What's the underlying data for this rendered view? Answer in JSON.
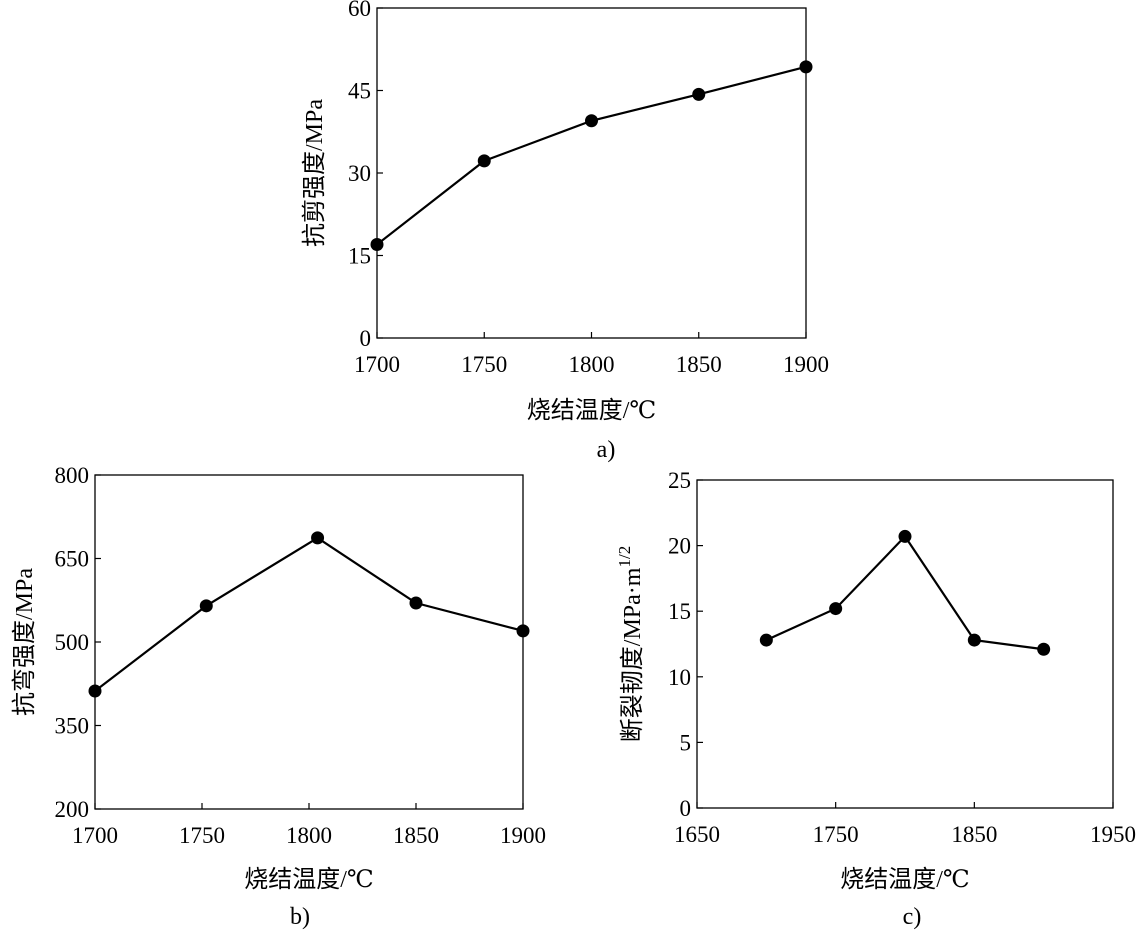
{
  "chart_data": [
    {
      "id": "a",
      "type": "line",
      "panel_label": "a)",
      "xlabel": "烧结温度/℃",
      "ylabel": "抗剪强度/MPa",
      "x": [
        1700,
        1750,
        1800,
        1850,
        1900
      ],
      "y": [
        17,
        32.2,
        39.5,
        44.3,
        49.3
      ],
      "xlim": [
        1700,
        1900
      ],
      "ylim": [
        0,
        60
      ],
      "xticks": [
        1700,
        1750,
        1800,
        1850,
        1900
      ],
      "yticks": [
        0,
        15,
        30,
        45,
        60
      ],
      "grid": false,
      "marker": "filled-circle"
    },
    {
      "id": "b",
      "type": "line",
      "panel_label": "b)",
      "xlabel": "烧结温度/℃",
      "ylabel": "抗弯强度/MPa",
      "x": [
        1700,
        1752,
        1804,
        1850,
        1900
      ],
      "y": [
        412,
        565,
        687,
        570,
        520
      ],
      "xlim": [
        1700,
        1900
      ],
      "ylim": [
        200,
        800
      ],
      "xticks": [
        1700,
        1750,
        1800,
        1850,
        1900
      ],
      "yticks": [
        200,
        350,
        500,
        650,
        800
      ],
      "grid": false,
      "marker": "filled-circle"
    },
    {
      "id": "c",
      "type": "line",
      "panel_label": "c)",
      "xlabel": "烧结温度/℃",
      "ylabel": "断裂韧度/MPa·m",
      "ylabel_sup": "1/2",
      "x": [
        1700,
        1750,
        1800,
        1850,
        1900
      ],
      "y": [
        12.8,
        15.2,
        20.7,
        12.8,
        12.1
      ],
      "xlim": [
        1650,
        1950
      ],
      "ylim": [
        0,
        25
      ],
      "xticks": [
        1650,
        1750,
        1850,
        1950
      ],
      "yticks": [
        0,
        5,
        10,
        15,
        20,
        25
      ],
      "grid": false,
      "marker": "filled-circle"
    }
  ]
}
